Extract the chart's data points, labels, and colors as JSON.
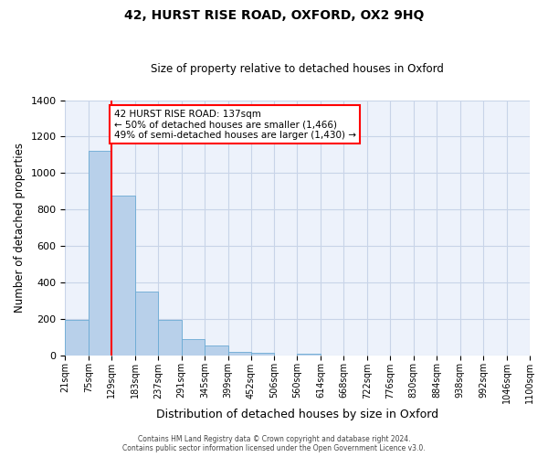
{
  "title": "42, HURST RISE ROAD, OXFORD, OX2 9HQ",
  "subtitle": "Size of property relative to detached houses in Oxford",
  "xlabel": "Distribution of detached houses by size in Oxford",
  "ylabel": "Number of detached properties",
  "bin_labels": [
    "21sqm",
    "75sqm",
    "129sqm",
    "183sqm",
    "237sqm",
    "291sqm",
    "345sqm",
    "399sqm",
    "452sqm",
    "506sqm",
    "560sqm",
    "614sqm",
    "668sqm",
    "722sqm",
    "776sqm",
    "830sqm",
    "884sqm",
    "938sqm",
    "992sqm",
    "1046sqm",
    "1100sqm"
  ],
  "bar_values": [
    193,
    1120,
    875,
    350,
    193,
    90,
    52,
    20,
    12,
    0,
    10,
    0,
    0,
    0,
    0,
    0,
    0,
    0,
    0,
    0
  ],
  "bar_color": "#b8d0ea",
  "bar_edge_color": "#6aaad4",
  "grid_color": "#c8d4e8",
  "vline_x_bin_index": 2,
  "vline_color": "red",
  "annotation_text": "42 HURST RISE ROAD: 137sqm\n← 50% of detached houses are smaller (1,466)\n49% of semi-detached houses are larger (1,430) →",
  "annotation_box_color": "white",
  "annotation_box_edge_color": "red",
  "ylim": [
    0,
    1400
  ],
  "yticks": [
    0,
    200,
    400,
    600,
    800,
    1000,
    1200,
    1400
  ],
  "footer1": "Contains HM Land Registry data © Crown copyright and database right 2024.",
  "footer2": "Contains public sector information licensed under the Open Government Licence v3.0.",
  "bin_edges": [
    21,
    75,
    129,
    183,
    237,
    291,
    345,
    399,
    452,
    506,
    560,
    614,
    668,
    722,
    776,
    830,
    884,
    938,
    992,
    1046,
    1100
  ],
  "fig_width": 6.0,
  "fig_height": 5.0,
  "bg_color": "#edf2fb"
}
